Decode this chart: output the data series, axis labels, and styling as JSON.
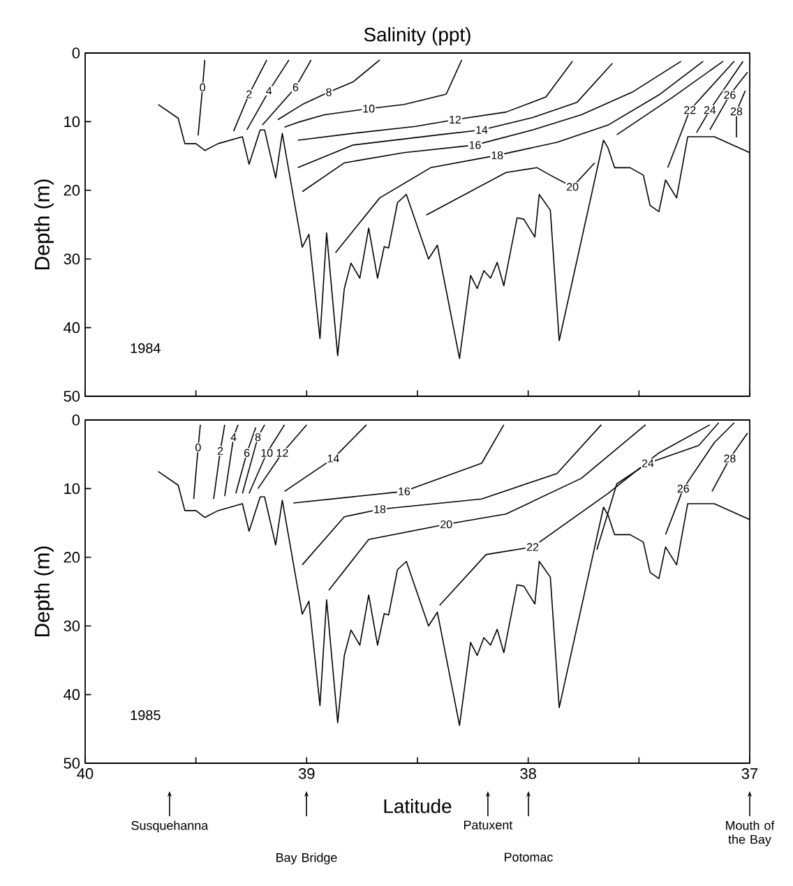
{
  "chart_data": [
    {
      "type": "line",
      "title": "Salinity (ppt)",
      "ylabel": "Depth (m)",
      "xlim": [
        40,
        37
      ],
      "ylim": [
        50,
        0
      ],
      "xticks": [
        {
          "value": 40,
          "label": null
        },
        {
          "value": 39.5,
          "label": null
        },
        {
          "value": 39,
          "label": null
        },
        {
          "value": 38.5,
          "label": null
        },
        {
          "value": 38,
          "label": null
        },
        {
          "value": 37.5,
          "label": null
        },
        {
          "value": 37,
          "label": null
        }
      ],
      "yticks": [
        0,
        10,
        20,
        30,
        40,
        50
      ],
      "tick_labels": "y",
      "annotations": [
        "1984"
      ],
      "series": [
        {
          "color": "#000000",
          "x": [
            39.67,
            39.58,
            39.55,
            39.5,
            39.46,
            39.4,
            39.29,
            39.26,
            39.21,
            39.19,
            39.14,
            39.11,
            39.02,
            38.99,
            38.94,
            38.91,
            38.86,
            38.83,
            38.8,
            38.76,
            38.72,
            38.68,
            38.65,
            38.63,
            38.59,
            38.55,
            38.45,
            38.41,
            38.31,
            38.26,
            38.23,
            38.2,
            38.17,
            38.14,
            38.11,
            38.05,
            38.02,
            37.97,
            37.95,
            37.9,
            37.86,
            37.66,
            37.64,
            37.61,
            37.54,
            37.48,
            37.45,
            37.41,
            37.38,
            37.33,
            37.28,
            37.16,
            37.0
          ],
          "values": [
            7.5,
            9.5,
            13.2,
            13.2,
            14.2,
            13.2,
            12.2,
            16.2,
            11.2,
            11.2,
            18.2,
            11.7,
            28.3,
            26.4,
            41.6,
            26.2,
            44.1,
            34.3,
            30.6,
            32.8,
            25.5,
            32.8,
            28.2,
            28.4,
            21.8,
            20.6,
            30.0,
            28.0,
            44.5,
            32.4,
            34.3,
            31.7,
            32.8,
            30.5,
            33.9,
            24.0,
            24.2,
            26.8,
            20.6,
            22.9,
            41.9,
            12.7,
            13.8,
            16.7,
            16.7,
            17.8,
            22.2,
            23.1,
            18.5,
            21.1,
            12.2,
            12.2,
            14.5
          ]
        },
        {
          "name": "0",
          "color": "#000000",
          "x": [
            39.46,
            39.47,
            39.49
          ],
          "values": [
            1,
            5,
            12
          ]
        },
        {
          "name": "2",
          "color": "#000000",
          "x": [
            39.18,
            39.26,
            39.33
          ],
          "values": [
            1,
            6,
            11.4
          ]
        },
        {
          "name": "4",
          "color": "#000000",
          "x": [
            39.08,
            39.17,
            39.27
          ],
          "values": [
            1,
            5.5,
            11.2
          ]
        },
        {
          "name": "6",
          "color": "#000000",
          "x": [
            38.98,
            39.05,
            39.2
          ],
          "values": [
            1,
            5,
            10.5
          ]
        },
        {
          "name": "8",
          "color": "#000000",
          "x": [
            38.67,
            38.79,
            38.9,
            39.02,
            39.13
          ],
          "values": [
            1,
            4.2,
            5.7,
            7.5,
            9.7
          ]
        },
        {
          "name": "10",
          "color": "#000000",
          "x": [
            38.3,
            38.37,
            38.56,
            38.72,
            38.92,
            39.04,
            39.1
          ],
          "values": [
            1,
            6,
            7.5,
            8.1,
            9,
            10.1,
            10.8
          ]
        },
        {
          "name": "12",
          "color": "#000000",
          "x": [
            37.8,
            37.92,
            38.1,
            38.33,
            38.51,
            38.79,
            39.04
          ],
          "values": [
            1.2,
            6.4,
            8.6,
            9.7,
            10.7,
            11.7,
            12.7
          ]
        },
        {
          "name": "14",
          "color": "#000000",
          "x": [
            37.62,
            37.78,
            37.98,
            38.21,
            38.4,
            38.79,
            39.04
          ],
          "values": [
            1.5,
            7.2,
            9.4,
            11.2,
            11.9,
            13.4,
            16.7
          ]
        },
        {
          "name": "16",
          "color": "#000000",
          "x": [
            37.31,
            37.53,
            37.76,
            37.98,
            38.24,
            38.56,
            38.83,
            39.02
          ],
          "values": [
            1.2,
            5.7,
            9,
            11.2,
            13.4,
            14.5,
            16,
            20.2
          ]
        },
        {
          "name": "18",
          "color": "#000000",
          "x": [
            37.21,
            37.41,
            37.64,
            37.87,
            38.14,
            38.44,
            38.67,
            38.87
          ],
          "values": [
            1.2,
            6.1,
            10.5,
            13,
            14.9,
            16.7,
            21.1,
            29.1
          ]
        },
        {
          "name": "20",
          "color": "#000000",
          "x": [
            37.12,
            37.35,
            37.6,
            null,
            37.7,
            37.8,
            37.9,
            37.96,
            38.1,
            38.46
          ],
          "values": [
            1.2,
            6.5,
            11.9,
            null,
            16,
            19.5,
            17.8,
            16.7,
            17.4,
            23.6
          ]
        },
        {
          "name": "22",
          "color": "#000000",
          "x": [
            37.07,
            37.27,
            37.37
          ],
          "values": [
            1.2,
            8.3,
            16.7
          ]
        },
        {
          "name": "24",
          "color": "#000000",
          "x": [
            37.03,
            37.18,
            37.24
          ],
          "values": [
            1.2,
            8.3,
            11.6
          ]
        },
        {
          "name": "26",
          "color": "#000000",
          "x": [
            37.01,
            37.09,
            37.18
          ],
          "values": [
            2.8,
            6.1,
            11.2
          ]
        },
        {
          "name": "28",
          "color": "#000000",
          "x": [
            37.02,
            37.06,
            37.06
          ],
          "values": [
            5.5,
            8.5,
            12.3
          ]
        }
      ]
    },
    {
      "type": "line",
      "xlabel": "Latitude",
      "ylabel": "Depth (m)",
      "xlim": [
        40,
        37
      ],
      "ylim": [
        50,
        0
      ],
      "xticks": [
        40,
        {
          "value": 39.5,
          "label": null
        },
        39,
        {
          "value": 38.5,
          "label": null
        },
        38,
        {
          "value": 37.5,
          "label": null
        },
        37
      ],
      "yticks": [
        0,
        10,
        20,
        30,
        40,
        50
      ],
      "annotations": [
        "1985",
        "Susquehanna",
        "Bay Bridge",
        "Patuxent",
        "Potomac",
        "Mouth of the Bay"
      ],
      "series": [
        {
          "color": "#000000",
          "x": [
            39.67,
            39.58,
            39.55,
            39.5,
            39.46,
            39.4,
            39.29,
            39.26,
            39.21,
            39.19,
            39.14,
            39.11,
            39.02,
            38.99,
            38.94,
            38.91,
            38.86,
            38.83,
            38.8,
            38.76,
            38.72,
            38.68,
            38.65,
            38.63,
            38.59,
            38.55,
            38.45,
            38.41,
            38.31,
            38.26,
            38.23,
            38.2,
            38.17,
            38.14,
            38.11,
            38.05,
            38.02,
            37.97,
            37.95,
            37.9,
            37.86,
            37.66,
            37.64,
            37.61,
            37.54,
            37.48,
            37.45,
            37.41,
            37.38,
            37.33,
            37.28,
            37.16,
            37.0
          ],
          "values": [
            7.5,
            9.5,
            13.2,
            13.2,
            14.2,
            13.2,
            12.2,
            16.2,
            11.2,
            11.2,
            18.2,
            11.7,
            28.3,
            26.4,
            41.6,
            26.2,
            44.1,
            34.3,
            30.6,
            32.8,
            25.5,
            32.8,
            28.2,
            28.4,
            21.8,
            20.6,
            30.0,
            28.0,
            44.5,
            32.4,
            34.3,
            31.7,
            32.8,
            30.5,
            33.9,
            24.0,
            24.2,
            26.8,
            20.6,
            22.9,
            41.9,
            12.7,
            13.8,
            16.7,
            16.7,
            17.8,
            22.2,
            23.1,
            18.5,
            21.1,
            12.2,
            12.2,
            14.5
          ]
        },
        {
          "name": "0",
          "color": "#000000",
          "x": [
            39.48,
            39.49,
            39.51
          ],
          "values": [
            0.7,
            4,
            11.5
          ]
        },
        {
          "name": "2",
          "color": "#000000",
          "x": [
            39.37,
            39.39,
            39.42
          ],
          "values": [
            0.7,
            4.5,
            11.5
          ]
        },
        {
          "name": "4",
          "color": "#000000",
          "x": [
            39.31,
            39.33,
            39.37
          ],
          "values": [
            0.7,
            2.5,
            11.1
          ]
        },
        {
          "name": "6",
          "color": "#000000",
          "x": [
            39.23,
            39.27,
            39.32
          ],
          "values": [
            1.1,
            4.8,
            10.7
          ]
        },
        {
          "name": "8",
          "color": "#000000",
          "x": [
            39.19,
            39.22,
            39.29
          ],
          "values": [
            0.7,
            2.5,
            10.7
          ]
        },
        {
          "name": "10",
          "color": "#000000",
          "x": [
            39.1,
            39.18,
            39.26
          ],
          "values": [
            0.7,
            4.8,
            10.7
          ]
        },
        {
          "name": "12",
          "color": "#000000",
          "x": [
            39.0,
            39.11,
            39.22
          ],
          "values": [
            0.7,
            4.8,
            10
          ]
        },
        {
          "name": "14",
          "color": "#000000",
          "x": [
            38.73,
            38.88,
            39.1
          ],
          "values": [
            0.7,
            5.6,
            10.4
          ]
        },
        {
          "name": "16",
          "color": "#000000",
          "x": [
            38.11,
            38.21,
            38.56,
            39.06
          ],
          "values": [
            0.7,
            6.3,
            10.4,
            12.1
          ]
        },
        {
          "name": "18",
          "color": "#000000",
          "x": [
            37.67,
            37.87,
            38.21,
            38.67,
            38.83,
            39.02
          ],
          "values": [
            0.7,
            7.8,
            11.5,
            13,
            14.1,
            21.1
          ]
        },
        {
          "name": "20",
          "color": "#000000",
          "x": [
            37.47,
            37.76,
            38.1,
            38.37,
            38.72,
            38.9
          ],
          "values": [
            0.7,
            8.5,
            13.7,
            15.2,
            17.4,
            24.8
          ]
        },
        {
          "name": "22",
          "color": "#000000",
          "x": [
            37.18,
            37.41,
            37.64,
            37.98,
            38.19,
            38.4
          ],
          "values": [
            0.7,
            4.8,
            10.7,
            18.5,
            19.6,
            27
          ]
        },
        {
          "name": "24",
          "color": "#000000",
          "x": [
            37.14,
            37.23,
            37.46,
            37.6,
            37.69
          ],
          "values": [
            0.4,
            3.7,
            6.3,
            9.3,
            18.9
          ]
        },
        {
          "name": "26",
          "color": "#000000",
          "x": [
            37.07,
            37.16,
            37.3,
            37.38
          ],
          "values": [
            0.4,
            3.3,
            10,
            16.7
          ]
        },
        {
          "name": "28",
          "color": "#000000",
          "x": [
            37.01,
            37.09,
            37.17
          ],
          "values": [
            1.9,
            5.6,
            10.4
          ]
        }
      ]
    }
  ]
}
